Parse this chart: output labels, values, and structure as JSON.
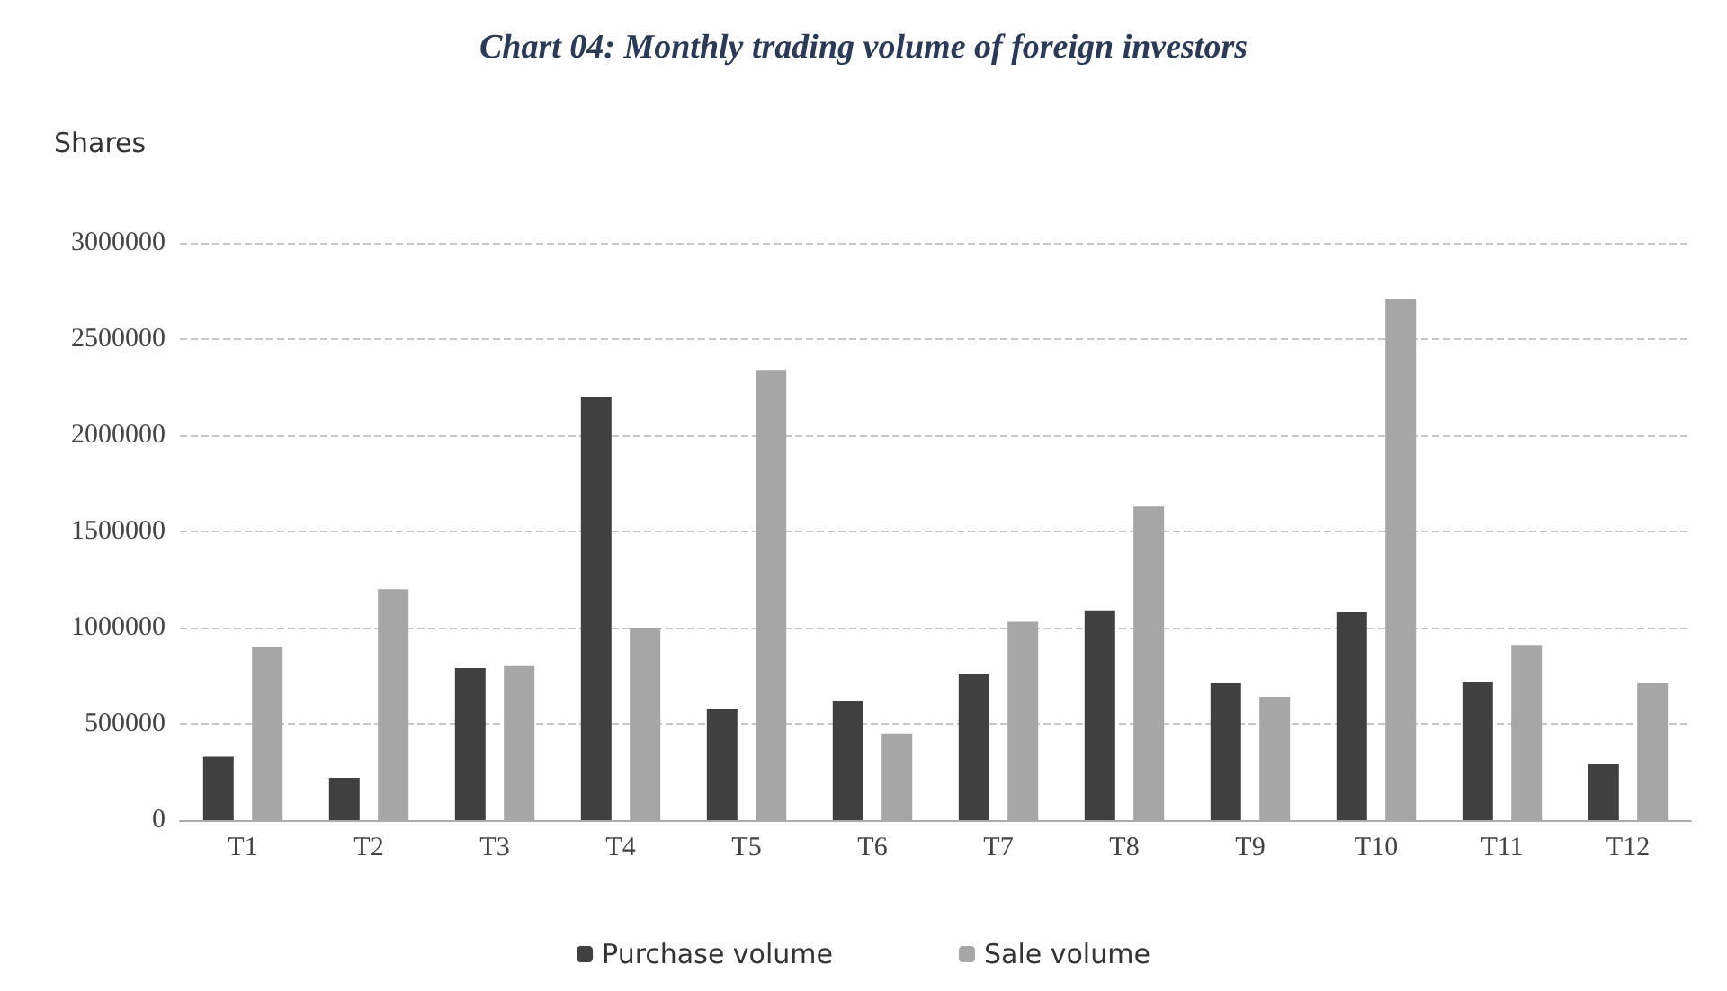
{
  "chart_data": {
    "type": "bar",
    "title": "Chart 04: Monthly trading volume of foreign investors",
    "ylabel": "Shares",
    "categories": [
      "T1",
      "T2",
      "T3",
      "T4",
      "T5",
      "T6",
      "T7",
      "T8",
      "T9",
      "T10",
      "T11",
      "T12"
    ],
    "series": [
      {
        "name": "Purchase volume",
        "color": "#404040",
        "values": [
          330000,
          220000,
          790000,
          2200000,
          580000,
          620000,
          760000,
          1090000,
          710000,
          1080000,
          720000,
          290000
        ]
      },
      {
        "name": "Sale volume",
        "color": "#a6a6a6",
        "values": [
          900000,
          1200000,
          800000,
          1000000,
          2340000,
          450000,
          1030000,
          1630000,
          640000,
          2710000,
          910000,
          710000
        ]
      }
    ],
    "ylim": [
      0,
      3000000
    ],
    "yticks": [
      0,
      500000,
      1000000,
      1500000,
      2000000,
      2500000,
      3000000
    ],
    "grid": "y",
    "legend": "bottom"
  }
}
